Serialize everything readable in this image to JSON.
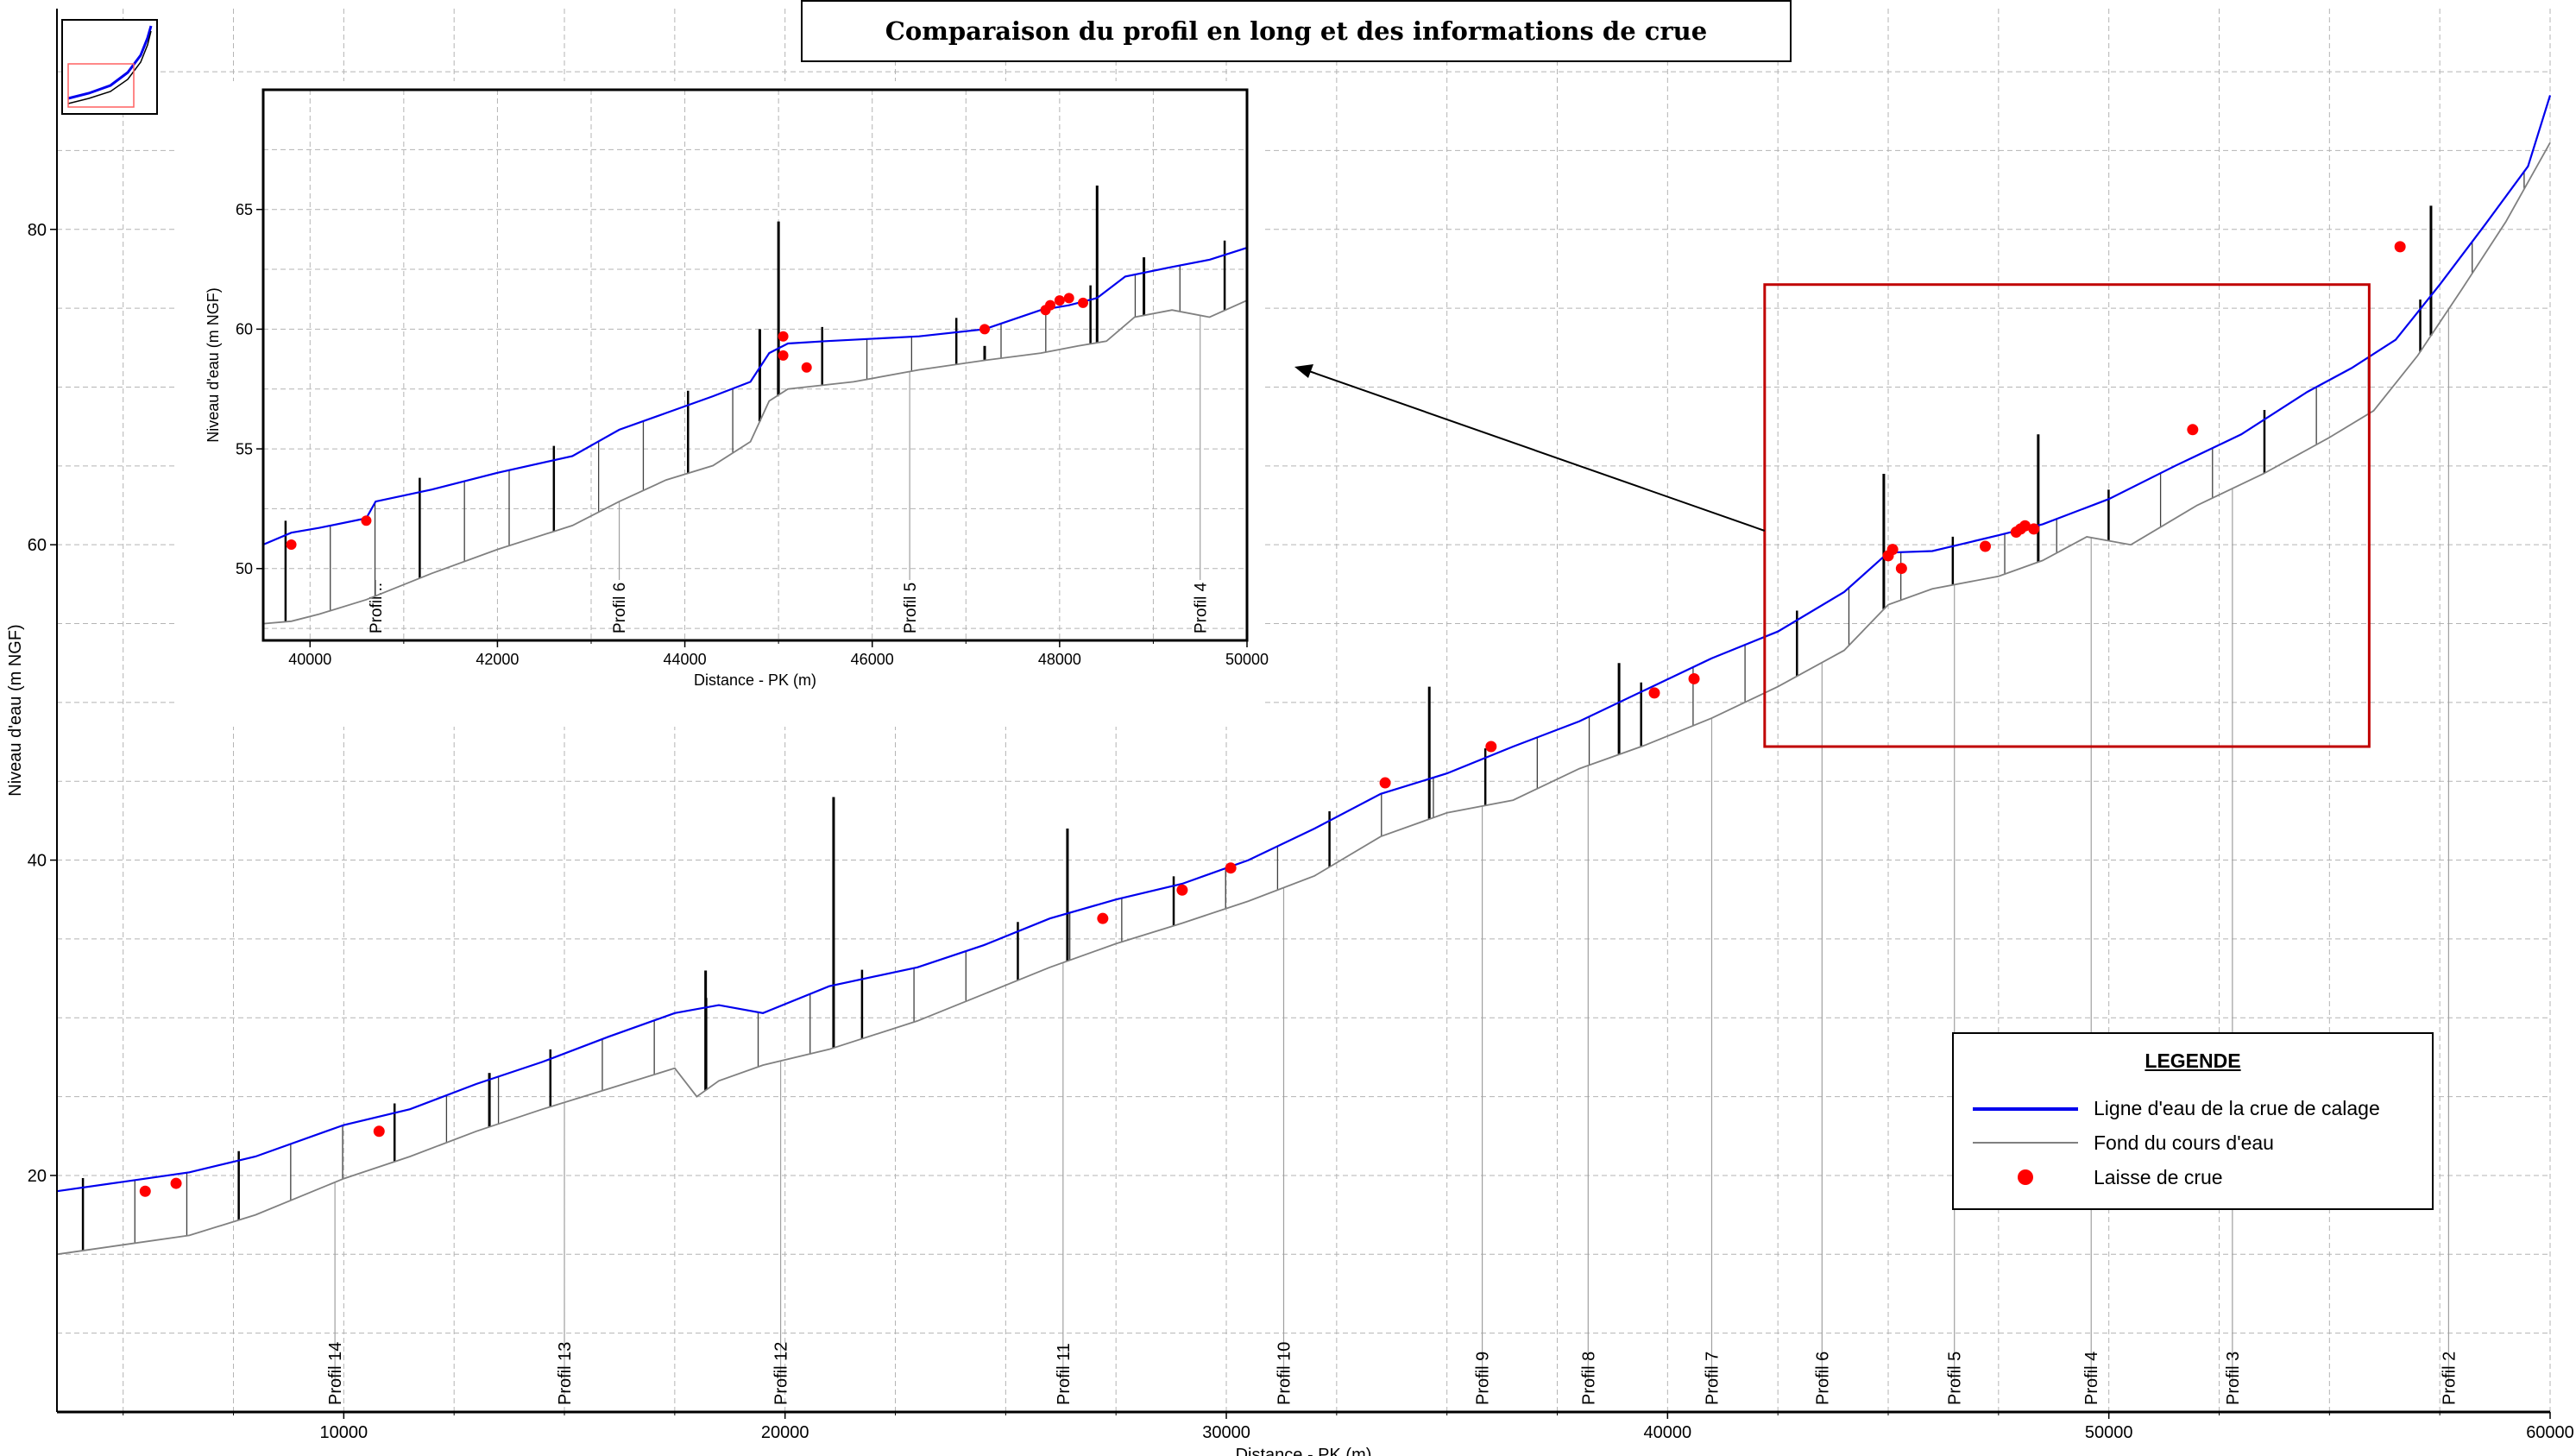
{
  "title": "Comparaison du profil en long et des informations de crue",
  "colors": {
    "water_line": "#0000ee",
    "bed_line": "#808080",
    "flood_mark": "#ff0000",
    "zoom_box": "#c00000",
    "structures": "#000000"
  },
  "legend": {
    "title": "LEGENDE",
    "items": [
      {
        "label": "Ligne d'eau de la crue de calage",
        "kind": "line",
        "color": "#0000ee"
      },
      {
        "label": "Fond du cours d'eau",
        "kind": "line",
        "color": "#808080"
      },
      {
        "label": "Laisse de crue",
        "kind": "dot",
        "color": "#ff0000"
      }
    ]
  },
  "chart_data": [
    {
      "type": "line",
      "panel": "main",
      "xlabel": "Distance - PK (m)",
      "ylabel": "Niveau d'eau (m NGF)",
      "xlim": [
        3500,
        60000
      ],
      "ylim": [
        5,
        94
      ],
      "grid": true,
      "x_ticks": [
        10000,
        20000,
        30000,
        40000,
        50000,
        60000
      ],
      "y_ticks": [
        20,
        40,
        60,
        80
      ],
      "series": [
        {
          "name": "Ligne d'eau de la crue de calage",
          "x": [
            3500,
            5000,
            6500,
            8000,
            10000,
            11500,
            13000,
            14500,
            16000,
            17500,
            18500,
            19500,
            21000,
            23000,
            24500,
            26000,
            27500,
            29000,
            30500,
            32000,
            33500,
            35000,
            36500,
            38000,
            39500,
            41000,
            42500,
            44000,
            45000,
            46000,
            47500,
            48500,
            50000,
            51500,
            53000,
            54500,
            55500,
            56500,
            57500,
            58500,
            59500,
            60000
          ],
          "y": [
            19.0,
            19.6,
            20.2,
            21.2,
            23.2,
            24.2,
            25.8,
            27.2,
            28.8,
            30.3,
            30.8,
            30.3,
            32.0,
            33.2,
            34.6,
            36.3,
            37.5,
            38.5,
            40.0,
            42.0,
            44.2,
            45.5,
            47.2,
            48.8,
            50.8,
            52.8,
            54.5,
            57.0,
            59.5,
            59.6,
            60.6,
            61.3,
            62.9,
            65.0,
            67.0,
            69.7,
            71.2,
            73.0,
            76.5,
            80.2,
            84.0,
            88.5
          ]
        },
        {
          "name": "Fond du cours d'eau",
          "x": [
            3500,
            5000,
            6500,
            8000,
            10000,
            11500,
            13000,
            14500,
            16000,
            17500,
            18000,
            18500,
            19500,
            21000,
            23000,
            24500,
            26000,
            27500,
            29000,
            30500,
            32000,
            33500,
            35000,
            36500,
            38000,
            39500,
            41000,
            42500,
            44000,
            45000,
            46000,
            47500,
            48500,
            49500,
            50500,
            52000,
            53500,
            55000,
            56000,
            57000,
            58000,
            59000,
            60000
          ],
          "y": [
            15.0,
            15.6,
            16.2,
            17.5,
            19.8,
            21.2,
            22.8,
            24.2,
            25.5,
            26.8,
            25.0,
            26.0,
            27.0,
            28.0,
            29.8,
            31.5,
            33.2,
            34.7,
            36.0,
            37.4,
            39.0,
            41.5,
            43.0,
            43.8,
            45.8,
            47.3,
            49.0,
            51.0,
            53.3,
            56.2,
            57.2,
            58.0,
            59.0,
            60.5,
            60.0,
            62.5,
            64.5,
            66.8,
            68.5,
            72.0,
            76.2,
            80.5,
            85.5
          ]
        }
      ],
      "flood_marks": {
        "x": [
          5500,
          6200,
          10800,
          27200,
          29000,
          30100,
          33600,
          36000,
          39700,
          40600,
          45000,
          45100,
          45300,
          47200,
          47900,
          48000,
          48100,
          48300,
          51900,
          56600
        ],
        "y": [
          19.0,
          19.5,
          22.8,
          36.3,
          38.1,
          39.5,
          44.9,
          47.2,
          50.6,
          51.5,
          59.3,
          59.7,
          58.5,
          59.9,
          60.8,
          61.0,
          61.2,
          61.0,
          67.3,
          78.9
        ]
      },
      "profile_labels": [
        {
          "label": "Profil 14",
          "x": 9800
        },
        {
          "label": "Profil 13",
          "x": 15000
        },
        {
          "label": "Profil 12",
          "x": 19900
        },
        {
          "label": "Profil 11",
          "x": 26300
        },
        {
          "label": "Profil 10",
          "x": 31300
        },
        {
          "label": "Profil 9",
          "x": 35800
        },
        {
          "label": "Profil 8",
          "x": 38200
        },
        {
          "label": "Profil 7",
          "x": 41000
        },
        {
          "label": "Profil 6",
          "x": 43500
        },
        {
          "label": "Profil 5",
          "x": 46500
        },
        {
          "label": "Profil 4",
          "x": 49600
        },
        {
          "label": "Profil 3",
          "x": 52800
        },
        {
          "label": "Profil 2",
          "x": 57700
        }
      ],
      "zoom_box": {
        "x": [
          42200,
          55900
        ],
        "y": [
          47.2,
          76.5
        ]
      }
    },
    {
      "type": "line",
      "panel": "inset",
      "xlabel": "Distance - PK (m)",
      "ylabel": "Niveau d'eau (m NGF)",
      "xlim": [
        39500,
        50000
      ],
      "ylim": [
        47,
        70
      ],
      "grid": true,
      "x_ticks": [
        40000,
        42000,
        44000,
        46000,
        48000,
        50000
      ],
      "y_ticks": [
        50,
        55,
        60,
        65
      ],
      "series": [
        {
          "name": "Ligne d'eau de la crue de calage",
          "x": [
            39500,
            39800,
            40100,
            40600,
            40700,
            41300,
            42000,
            42800,
            43300,
            43800,
            44300,
            44700,
            44900,
            45100,
            45500,
            46500,
            47200,
            47800,
            48100,
            48400,
            48700,
            49200,
            49600,
            50000
          ],
          "y": [
            51.0,
            51.5,
            51.7,
            52.1,
            52.8,
            53.3,
            54.0,
            54.7,
            55.8,
            56.5,
            57.2,
            57.8,
            59.0,
            59.4,
            59.5,
            59.7,
            60.0,
            60.8,
            61.0,
            61.3,
            62.2,
            62.6,
            62.9,
            63.4
          ]
        },
        {
          "name": "Fond du cours d'eau",
          "x": [
            39500,
            39800,
            40100,
            40600,
            41300,
            42000,
            42800,
            43300,
            43800,
            44300,
            44700,
            44900,
            45100,
            45800,
            46500,
            47200,
            47800,
            48200,
            48500,
            48800,
            49200,
            49600,
            50000
          ],
          "y": [
            47.7,
            47.8,
            48.1,
            48.7,
            49.8,
            50.8,
            51.8,
            52.8,
            53.7,
            54.3,
            55.3,
            57.0,
            57.5,
            57.8,
            58.3,
            58.7,
            59.0,
            59.3,
            59.5,
            60.5,
            60.8,
            60.5,
            61.2
          ]
        }
      ],
      "flood_marks": {
        "x": [
          39800,
          40600,
          45050,
          45050,
          45300,
          47200,
          47850,
          47900,
          48000,
          48100,
          48250
        ],
        "y": [
          51.0,
          52.0,
          59.7,
          58.9,
          58.4,
          60.0,
          60.8,
          61.0,
          61.2,
          61.3,
          61.1
        ]
      },
      "profile_labels": [
        {
          "label": "Profil...",
          "x": 40700
        },
        {
          "label": "Profil 6",
          "x": 43300
        },
        {
          "label": "Profil 5",
          "x": 46400
        },
        {
          "label": "Profil 4",
          "x": 49500
        }
      ]
    }
  ]
}
